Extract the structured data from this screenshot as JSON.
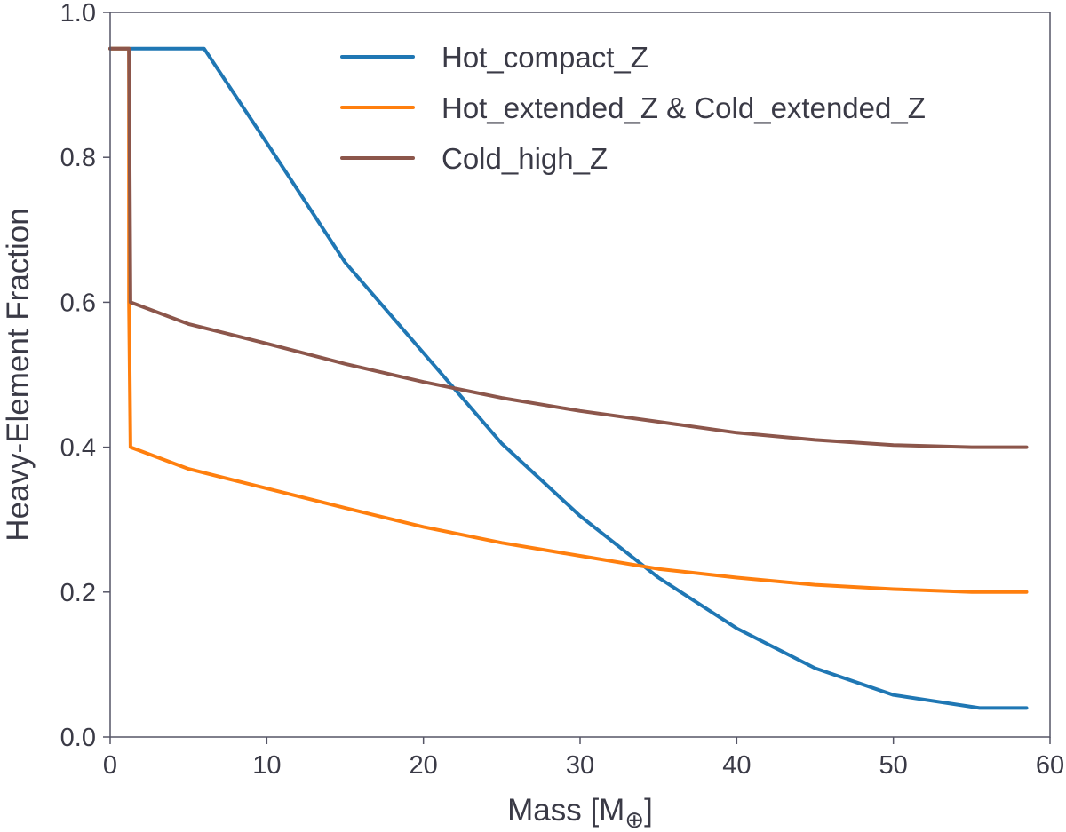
{
  "chart_data": {
    "type": "line",
    "title": "",
    "xlabel": "Mass [M",
    "xlabel_symbol": "⊕",
    "xlabel_close": "]",
    "ylabel": "Heavy-Element Fraction",
    "xlim": [
      0,
      60
    ],
    "ylim": [
      0.0,
      1.0
    ],
    "xticks": [
      0,
      10,
      20,
      30,
      40,
      50,
      60
    ],
    "yticks": [
      0.0,
      0.2,
      0.4,
      0.6,
      0.8,
      1.0
    ],
    "xtick_labels": [
      "0",
      "10",
      "20",
      "30",
      "40",
      "50",
      "60"
    ],
    "ytick_labels": [
      "0.0",
      "0.2",
      "0.4",
      "0.6",
      "0.8",
      "1.0"
    ],
    "grid": false,
    "legend_position": "top-center",
    "series": [
      {
        "name": "Hot_compact_Z",
        "color": "#1f77b4",
        "x": [
          0,
          6,
          10,
          15,
          20,
          25,
          30,
          35,
          40,
          45,
          50,
          55.5,
          58.5
        ],
        "y": [
          0.95,
          0.95,
          0.82,
          0.655,
          0.53,
          0.405,
          0.305,
          0.22,
          0.15,
          0.095,
          0.058,
          0.04,
          0.04
        ]
      },
      {
        "name": "Hot_extended_Z & Cold_extended_Z",
        "color": "#ff7f0e",
        "x": [
          0,
          1.2,
          1.2,
          1.3,
          5,
          10,
          15,
          20,
          25,
          30,
          35,
          40,
          45,
          50,
          55,
          58.5
        ],
        "y": [
          0.95,
          0.95,
          0.6,
          0.4,
          0.37,
          0.343,
          0.316,
          0.29,
          0.268,
          0.25,
          0.232,
          0.22,
          0.21,
          0.204,
          0.2,
          0.2
        ]
      },
      {
        "name": "Cold_high_Z",
        "color": "#8c564b",
        "x": [
          0,
          1.2,
          1.3,
          5,
          10,
          15,
          20,
          25,
          30,
          35,
          40,
          45,
          50,
          55,
          58.5
        ],
        "y": [
          0.95,
          0.95,
          0.6,
          0.57,
          0.543,
          0.515,
          0.49,
          0.468,
          0.45,
          0.435,
          0.42,
          0.41,
          0.403,
          0.4,
          0.4
        ]
      }
    ],
    "colors": {
      "axis": "#555566",
      "text": "#3a3a46",
      "background": "#ffffff"
    }
  }
}
